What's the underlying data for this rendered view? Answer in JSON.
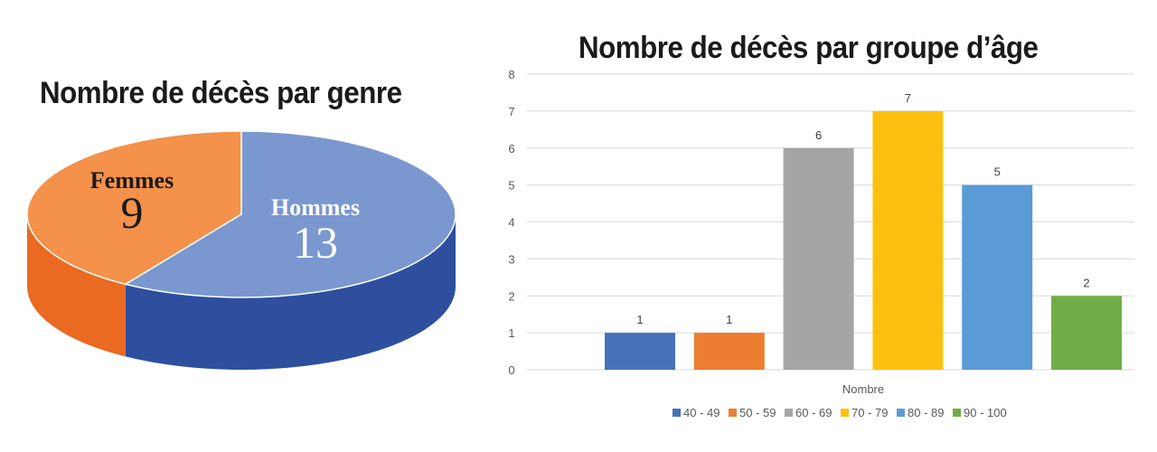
{
  "chart_data": [
    {
      "type": "pie",
      "title": "Nombre de décès par genre",
      "slices": [
        {
          "label": "Hommes",
          "value": 13,
          "color": "#7b97d0",
          "side_color": "#2d4f9e"
        },
        {
          "label": "Femmes",
          "value": 9,
          "color": "#f4914a",
          "side_color": "#ea6a22"
        }
      ]
    },
    {
      "type": "bar",
      "title": "Nombre de décès par groupe d’âge",
      "categories": [
        "Nombre"
      ],
      "xlabel": "Nombre",
      "ylabel": "",
      "ylim": [
        0,
        8
      ],
      "yticks": [
        "0",
        "1",
        "2",
        "3",
        "4",
        "5",
        "6",
        "7",
        "8"
      ],
      "grid": true,
      "legend_position": "bottom",
      "series": [
        {
          "name": "40 - 49",
          "values": [
            1
          ],
          "color": "#4671b8"
        },
        {
          "name": "50 - 59",
          "values": [
            1
          ],
          "color": "#ed7d31"
        },
        {
          "name": "60 - 69",
          "values": [
            6
          ],
          "color": "#a5a5a5"
        },
        {
          "name": "70 - 79",
          "values": [
            7
          ],
          "color": "#fdc010"
        },
        {
          "name": "80 - 89",
          "values": [
            5
          ],
          "color": "#5b9bd5"
        },
        {
          "name": "90 - 100",
          "values": [
            2
          ],
          "color": "#70ad47"
        }
      ]
    }
  ]
}
